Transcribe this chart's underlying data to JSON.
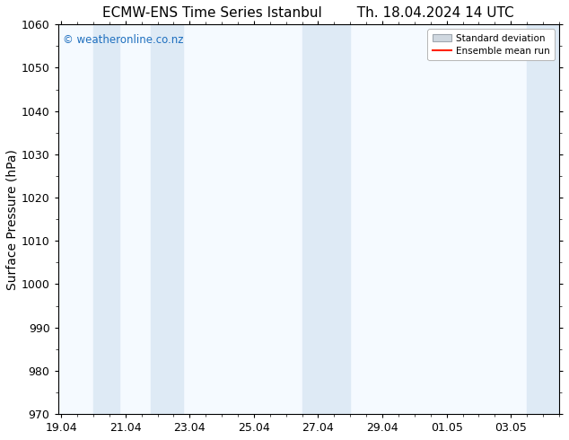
{
  "title": "ECMW-ENS Time Series Istanbul        Th. 18.04.2024 14 UTC",
  "ylabel": "Surface Pressure (hPa)",
  "ylim": [
    970,
    1060
  ],
  "yticks": [
    970,
    980,
    990,
    1000,
    1010,
    1020,
    1030,
    1040,
    1050,
    1060
  ],
  "x_tick_labels": [
    "19.04",
    "21.04",
    "23.04",
    "25.04",
    "27.04",
    "29.04",
    "01.05",
    "03.05"
  ],
  "x_tick_positions": [
    0,
    2,
    4,
    6,
    8,
    10,
    12,
    14
  ],
  "x_min": -0.1,
  "x_max": 15.5,
  "shaded_bands": [
    {
      "x_start": 1.0,
      "x_end": 1.8,
      "color": "#deeaf5"
    },
    {
      "x_start": 2.8,
      "x_end": 3.8,
      "color": "#deeaf5"
    },
    {
      "x_start": 7.5,
      "x_end": 9.0,
      "color": "#deeaf5"
    },
    {
      "x_start": 14.5,
      "x_end": 15.5,
      "color": "#deeaf5"
    }
  ],
  "watermark_text": "© weatheronline.co.nz",
  "watermark_color": "#1e6fbf",
  "legend_std_label": "Standard deviation",
  "legend_ens_label": "Ensemble mean run",
  "legend_std_facecolor": "#d0d8e0",
  "legend_std_edgecolor": "#a0a8b0",
  "legend_ens_color": "#ff2200",
  "bg_color": "#ffffff",
  "plot_bg_color": "#f5faff",
  "title_fontsize": 11,
  "axis_label_fontsize": 10,
  "tick_fontsize": 9
}
